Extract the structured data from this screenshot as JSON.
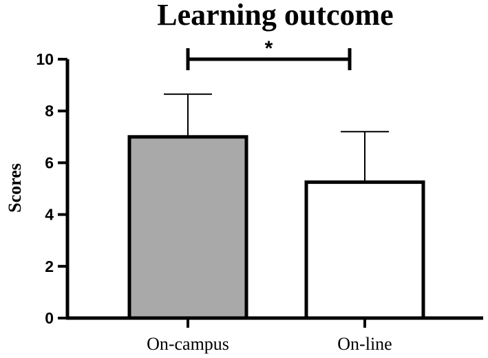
{
  "chart_data": {
    "type": "bar",
    "title": "Learning outcome",
    "xlabel": "",
    "ylabel": "Scores",
    "ylim": [
      0,
      10
    ],
    "yticks": [
      0,
      2,
      4,
      6,
      8,
      10
    ],
    "categories": [
      "On-campus",
      "On-line"
    ],
    "values": [
      7.0,
      5.25
    ],
    "error_upper": [
      8.65,
      7.2
    ],
    "bar_fill_colors": [
      "#a9a9a9",
      "#ffffff"
    ],
    "bar_edge_color": "#000000",
    "significance": {
      "between": [
        "On-campus",
        "On-line"
      ],
      "marker": "*"
    },
    "grid": false,
    "legend": "none"
  }
}
